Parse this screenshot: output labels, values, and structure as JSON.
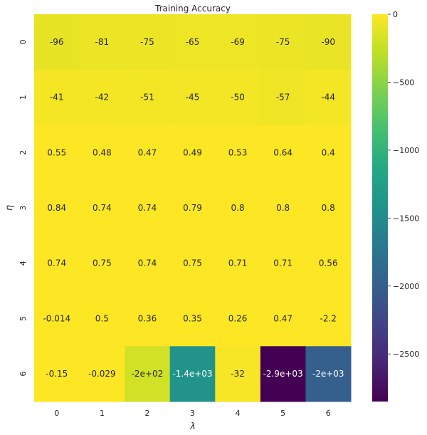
{
  "chart_data": {
    "type": "heatmap",
    "title": "Training Accuracy",
    "xlabel": "λ",
    "ylabel": "η",
    "x_categories": [
      "0",
      "1",
      "2",
      "3",
      "4",
      "5",
      "6"
    ],
    "y_categories": [
      "0",
      "1",
      "2",
      "3",
      "4",
      "5",
      "6"
    ],
    "values": [
      [
        -96,
        -81,
        -75,
        -65,
        -69,
        -75,
        -90
      ],
      [
        -41,
        -42,
        -51,
        -45,
        -50,
        -57,
        -44
      ],
      [
        0.55,
        0.48,
        0.47,
        0.49,
        0.53,
        0.64,
        0.4
      ],
      [
        0.84,
        0.74,
        0.74,
        0.79,
        0.8,
        0.8,
        0.8
      ],
      [
        0.74,
        0.75,
        0.74,
        0.75,
        0.71,
        0.71,
        0.56
      ],
      [
        -0.014,
        0.5,
        0.36,
        0.35,
        0.26,
        0.47,
        -2.2
      ],
      [
        -0.15,
        -0.029,
        -200,
        -1400,
        -32,
        -2900,
        -2000
      ]
    ],
    "annotations": [
      [
        "-96",
        "-81",
        "-75",
        "-65",
        "-69",
        "-75",
        "-90"
      ],
      [
        "-41",
        "-42",
        "-51",
        "-45",
        "-50",
        "-57",
        "-44"
      ],
      [
        "0.55",
        "0.48",
        "0.47",
        "0.49",
        "0.53",
        "0.64",
        "0.4"
      ],
      [
        "0.84",
        "0.74",
        "0.74",
        "0.79",
        "0.8",
        "0.8",
        "0.8"
      ],
      [
        "0.74",
        "0.75",
        "0.74",
        "0.75",
        "0.71",
        "0.71",
        "0.56"
      ],
      [
        "-0.014",
        "0.5",
        "0.36",
        "0.35",
        "0.26",
        "0.47",
        "-2.2"
      ],
      [
        "-0.15",
        "-0.029",
        "-2e+02",
        "-1.4e+03",
        "-32",
        "-2.9e+03",
        "-2e+03"
      ]
    ],
    "colormap": "viridis",
    "color_range": [
      -2850,
      0
    ],
    "colorbar_ticks": [
      0,
      -500,
      -1000,
      -1500,
      -2000,
      -2500
    ],
    "colorbar_tick_labels": [
      "0",
      "−500",
      "−1000",
      "−1500",
      "−2000",
      "−2500"
    ]
  }
}
